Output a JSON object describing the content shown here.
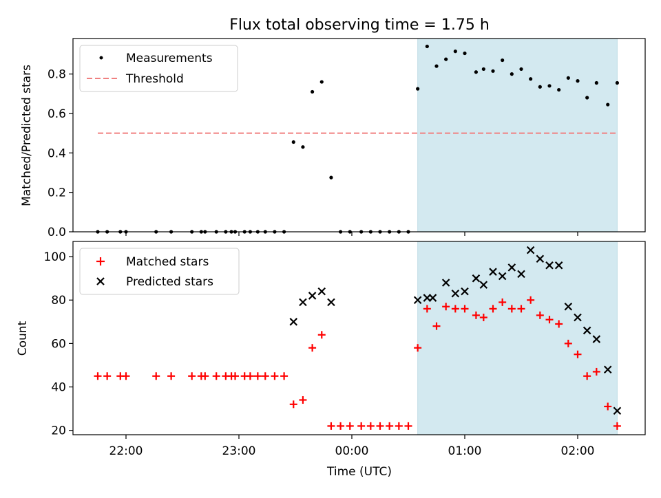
{
  "figure": {
    "title": "Flux total observing time = 1.75 h",
    "xlabel": "Time (UTC)",
    "x_ticks": [
      "22:00",
      "23:00",
      "00:00",
      "01:00",
      "02:00"
    ]
  },
  "chart_data": [
    {
      "type": "scatter",
      "panel": "top",
      "ylabel": "Matched/Predicted stars",
      "ylim": [
        0,
        0.98
      ],
      "y_ticks": [
        "0.0",
        "0.2",
        "0.4",
        "0.6",
        "0.8"
      ],
      "highlight_span": {
        "x_start": "00:35",
        "x_end": "02:21",
        "color": "#d3e9f0"
      },
      "threshold": {
        "name": "Threshold",
        "value": 0.5,
        "x_start": "21:45",
        "x_end": "02:21",
        "color": "#f08080"
      },
      "legend": {
        "placement": "upper-left",
        "entries": [
          "Measurements",
          "Threshold"
        ]
      },
      "series": [
        {
          "name": "Measurements",
          "color": "#000000",
          "x": [
            "21:45",
            "21:50",
            "21:57",
            "22:00",
            "22:16",
            "22:24",
            "22:35",
            "22:40",
            "22:42",
            "22:48",
            "22:53",
            "22:56",
            "22:58",
            "23:03",
            "23:06",
            "23:10",
            "23:14",
            "23:19",
            "23:24",
            "23:29",
            "23:34",
            "23:39",
            "23:44",
            "23:49",
            "23:54",
            "23:59",
            "00:05",
            "00:10",
            "00:15",
            "00:20",
            "00:25",
            "00:30",
            "00:35",
            "00:40",
            "00:45",
            "00:50",
            "00:55",
            "01:00",
            "01:06",
            "01:10",
            "01:15",
            "01:20",
            "01:25",
            "01:30",
            "01:35",
            "01:40",
            "01:45",
            "01:50",
            "01:55",
            "02:00",
            "02:05",
            "02:10",
            "02:16",
            "02:21"
          ],
          "y": [
            0,
            0,
            0,
            0,
            0,
            0,
            0,
            0,
            0,
            0,
            0,
            0,
            0,
            0,
            0,
            0,
            0,
            0,
            0,
            0.455,
            0.43,
            0.71,
            0.76,
            0.275,
            0,
            0,
            0,
            0,
            0,
            0,
            0,
            0,
            0.725,
            0.94,
            0.84,
            0.875,
            0.915,
            0.905,
            0.81,
            0.825,
            0.815,
            0.87,
            0.8,
            0.825,
            0.775,
            0.735,
            0.74,
            0.72,
            0.78,
            0.765,
            0.68,
            0.755,
            0.645,
            0.755
          ]
        }
      ]
    },
    {
      "type": "scatter",
      "panel": "bottom",
      "ylabel": "Count",
      "ylim": [
        18,
        107
      ],
      "y_ticks": [
        "20",
        "40",
        "60",
        "80",
        "100"
      ],
      "highlight_span": {
        "x_start": "00:35",
        "x_end": "02:21",
        "color": "#d3e9f0"
      },
      "legend": {
        "placement": "upper-left",
        "entries": [
          "Matched stars",
          "Predicted stars"
        ]
      },
      "series": [
        {
          "name": "Matched stars",
          "marker": "plus",
          "color": "#ff0000",
          "x": [
            "21:45",
            "21:50",
            "21:57",
            "22:00",
            "22:16",
            "22:24",
            "22:35",
            "22:40",
            "22:42",
            "22:48",
            "22:53",
            "22:56",
            "22:58",
            "23:03",
            "23:06",
            "23:10",
            "23:14",
            "23:19",
            "23:24",
            "23:29",
            "23:34",
            "23:39",
            "23:44",
            "23:49",
            "23:54",
            "23:59",
            "00:05",
            "00:10",
            "00:15",
            "00:20",
            "00:25",
            "00:30",
            "00:35",
            "00:40",
            "00:45",
            "00:50",
            "00:55",
            "01:00",
            "01:06",
            "01:10",
            "01:15",
            "01:20",
            "01:25",
            "01:30",
            "01:35",
            "01:40",
            "01:45",
            "01:50",
            "01:55",
            "02:00",
            "02:05",
            "02:10",
            "02:16",
            "02:21"
          ],
          "y": [
            45,
            45,
            45,
            45,
            45,
            45,
            45,
            45,
            45,
            45,
            45,
            45,
            45,
            45,
            45,
            45,
            45,
            45,
            45,
            32,
            34,
            58,
            64,
            22,
            22,
            22,
            22,
            22,
            22,
            22,
            22,
            22,
            58,
            76,
            68,
            77,
            76,
            76,
            73,
            72,
            76,
            79,
            76,
            76,
            80,
            73,
            71,
            69,
            60,
            55,
            45,
            47,
            31,
            22
          ]
        },
        {
          "name": "Predicted stars",
          "marker": "x",
          "color": "#000000",
          "x": [
            "23:29",
            "23:34",
            "23:39",
            "23:44",
            "23:49",
            "00:35",
            "00:40",
            "00:43",
            "00:50",
            "00:55",
            "01:00",
            "01:06",
            "01:10",
            "01:15",
            "01:20",
            "01:25",
            "01:30",
            "01:35",
            "01:40",
            "01:45",
            "01:50",
            "01:55",
            "02:00",
            "02:05",
            "02:10",
            "02:16",
            "02:21"
          ],
          "y": [
            70,
            79,
            82,
            84,
            79,
            80,
            81,
            81,
            88,
            83,
            84,
            90,
            87,
            93,
            91,
            95,
            92,
            103,
            99,
            96,
            96,
            77,
            72,
            66,
            62,
            48,
            29
          ]
        }
      ]
    }
  ]
}
